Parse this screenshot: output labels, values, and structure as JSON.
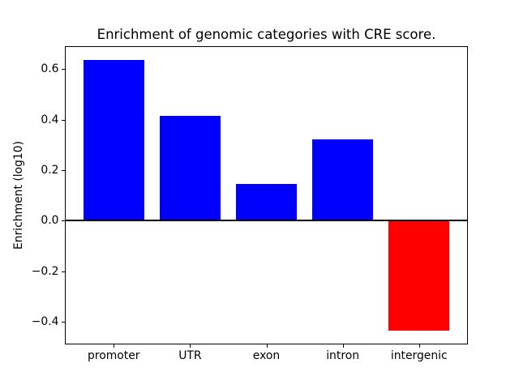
{
  "figure": {
    "background": "#ffffff",
    "text_color": "#000000",
    "axis_color": "#000000"
  },
  "chart_data": {
    "type": "bar",
    "title": "Enrichment of genomic categories with CRE score.",
    "xlabel": "",
    "ylabel": "Enrichment (log10)",
    "categories": [
      "promoter",
      "UTR",
      "exon",
      "intron",
      "intergenic"
    ],
    "values": [
      0.637,
      0.414,
      0.145,
      0.323,
      -0.436
    ],
    "bar_colors": [
      "#0000ff",
      "#0000ff",
      "#0000ff",
      "#0000ff",
      "#ff0000"
    ],
    "positive_color": "#0000ff",
    "negative_color": "#ff0000",
    "yticks": [
      -0.4,
      -0.2,
      0.0,
      0.2,
      0.4,
      0.6
    ],
    "ytick_labels": [
      "−0.4",
      "−0.2",
      "0.0",
      "0.2",
      "0.4",
      "0.6"
    ],
    "ylim": [
      -0.49,
      0.691
    ],
    "xlim": [
      -0.64,
      4.64
    ],
    "bar_width_fraction": 0.8,
    "zero_line": true,
    "grid": false,
    "legend": null
  }
}
